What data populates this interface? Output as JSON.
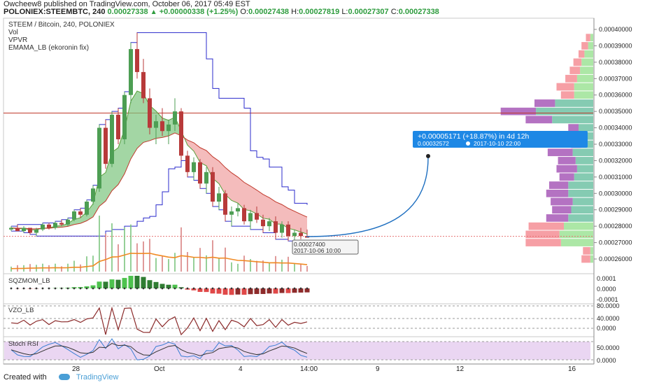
{
  "header": {
    "author": "Owcheew8",
    "published": "published on TradingView.com, October 06, 2017 05:49 EST",
    "symbol": "POLONIEX:STEEMBTC, 240",
    "last": "0.00027338",
    "change": "+0.00000338 (+1.25%)",
    "o_label": "O:",
    "o_value": "0.00027438",
    "h_label": "H:",
    "h_value": "0.00027819",
    "l_label": "L:",
    "l_value": "0.00027307",
    "c_label": "C:",
    "c_value": "0.00027338"
  },
  "main_legend": {
    "title": "STEEM / Bitcoin, 240, POLONIEX",
    "vol": "Vol",
    "vpvr": "VPVR",
    "emama": "EMAMA_LB (ekoronin fix)"
  },
  "price_axis": {
    "ticks": [
      "0.00040000",
      "0.00039000",
      "0.00038000",
      "0.00037000",
      "0.00036000",
      "0.00035000",
      "0.00034000",
      "0.00033000",
      "0.00032000",
      "0.00031000",
      "0.00030000",
      "0.00029000",
      "0.00028000",
      "0.00027000",
      "0.00026000"
    ]
  },
  "projection": {
    "change": "+0.00005171 (+18.87%) in 4d 12h",
    "target": "0.00032572",
    "date": "2017-10-10  22:00"
  },
  "cursor_label": {
    "price": "0.00027400",
    "date": "2017-10-06 10:00"
  },
  "sqz": {
    "title": "SQZMOM_LB",
    "ticks": [
      "0.0001",
      "0.0000",
      "-0.0001"
    ]
  },
  "vzo": {
    "title": "VZO_LB",
    "ticks": [
      "80.0000",
      "40.0000",
      "0.0000"
    ]
  },
  "stoch": {
    "title": "Stoch RSI",
    "ticks": [
      "50.0000",
      "0.0000"
    ]
  },
  "x_axis": {
    "ticks": [
      "28",
      "Oct",
      "4",
      "14:00",
      "9",
      "12",
      "16"
    ]
  },
  "footer": {
    "created": "Created with",
    "brand": "TradingView"
  },
  "colors": {
    "up": "#4d9e53",
    "down": "#b83a3a",
    "ribbon_up": "#7cc47e",
    "ribbon_down": "#f0a0a0",
    "blue_line": "#2b2bcc",
    "orange_line": "#f08a24",
    "vp_up": "#7ec8ae",
    "vp_down": "#b06abf",
    "projection_bg": "#1e88e5"
  },
  "chart_data": {
    "type": "candlestick",
    "symbol": "STEEM / Bitcoin, 240, POLONIEX",
    "ylim": [
      0.000255,
      0.000405
    ],
    "candles": [
      [
        0.000278,
        0.00028,
        0.000277,
        0.000279
      ],
      [
        0.000279,
        0.000281,
        0.000277,
        0.000277
      ],
      [
        0.000277,
        0.00028,
        0.000276,
        0.000279
      ],
      [
        0.000279,
        0.000279,
        0.000275,
        0.000276
      ],
      [
        0.000276,
        0.000279,
        0.000274,
        0.000278
      ],
      [
        0.000278,
        0.000282,
        0.000277,
        0.000281
      ],
      [
        0.000281,
        0.000282,
        0.000278,
        0.000279
      ],
      [
        0.000279,
        0.000283,
        0.000278,
        0.000282
      ],
      [
        0.000282,
        0.000284,
        0.00028,
        0.000281
      ],
      [
        0.000281,
        0.000285,
        0.00028,
        0.000284
      ],
      [
        0.000284,
        0.00029,
        0.000283,
        0.000289
      ],
      [
        0.000289,
        0.000291,
        0.000285,
        0.000287
      ],
      [
        0.000287,
        0.000296,
        0.000286,
        0.000295
      ],
      [
        0.000295,
        0.000305,
        0.000293,
        0.000303
      ],
      [
        0.000303,
        0.000342,
        0.000301,
        0.00034
      ],
      [
        0.00034,
        0.000345,
        0.000315,
        0.000318
      ],
      [
        0.000318,
        0.00035,
        0.000316,
        0.000348
      ],
      [
        0.000348,
        0.000352,
        0.00033,
        0.000333
      ],
      [
        0.000333,
        0.000362,
        0.00033,
        0.00036
      ],
      [
        0.00036,
        0.000392,
        0.000355,
        0.000388
      ],
      [
        0.000388,
        0.000398,
        0.00037,
        0.000374
      ],
      [
        0.000374,
        0.000382,
        0.000355,
        0.000358
      ],
      [
        0.000358,
        0.000364,
        0.000336,
        0.00034
      ],
      [
        0.00034,
        0.000348,
        0.00033,
        0.000344
      ],
      [
        0.000344,
        0.000352,
        0.000335,
        0.000338
      ],
      [
        0.000338,
        0.000345,
        0.00033,
        0.000342
      ],
      [
        0.000342,
        0.000358,
        0.000338,
        0.00035
      ],
      [
        0.00035,
        0.000352,
        0.00032,
        0.000323
      ],
      [
        0.000323,
        0.000326,
        0.00031,
        0.000313
      ],
      [
        0.000313,
        0.000322,
        0.000308,
        0.000319
      ],
      [
        0.000319,
        0.000321,
        0.000303,
        0.000306
      ],
      [
        0.000306,
        0.000316,
        0.0003,
        0.000313
      ],
      [
        0.000313,
        0.000316,
        0.000292,
        0.000295
      ],
      [
        0.000295,
        0.000304,
        0.00029,
        0.0003
      ],
      [
        0.0003,
        0.000302,
        0.000283,
        0.000287
      ],
      [
        0.000287,
        0.000292,
        0.00028,
        0.000289
      ],
      [
        0.000289,
        0.000294,
        0.000286,
        0.000291
      ],
      [
        0.000291,
        0.000293,
        0.000281,
        0.000283
      ],
      [
        0.000283,
        0.00029,
        0.000278,
        0.000288
      ],
      [
        0.000288,
        0.000292,
        0.000282,
        0.000284
      ],
      [
        0.000284,
        0.000287,
        0.000276,
        0.00028
      ],
      [
        0.00028,
        0.000285,
        0.000277,
        0.000283
      ],
      [
        0.000283,
        0.000286,
        0.000272,
        0.000276
      ],
      [
        0.000276,
        0.000283,
        0.000273,
        0.000281
      ],
      [
        0.000281,
        0.000283,
        0.000271,
        0.000274
      ],
      [
        0.000274,
        0.000278,
        0.000269,
        0.000276
      ],
      [
        0.000276,
        0.000279,
        0.000272,
        0.000274
      ],
      [
        0.000274,
        0.000278,
        0.000273,
        0.000273
      ]
    ],
    "volume_profile": [
      {
        "price": 0.000395,
        "up": 4,
        "down": 6,
        "va": false
      },
      {
        "price": 0.00039,
        "up": 7,
        "down": 9,
        "va": false
      },
      {
        "price": 0.000385,
        "up": 12,
        "down": 8,
        "va": false
      },
      {
        "price": 0.00038,
        "up": 16,
        "down": 11,
        "va": false
      },
      {
        "price": 0.000375,
        "up": 18,
        "down": 14,
        "va": false
      },
      {
        "price": 0.00037,
        "up": 22,
        "down": 16,
        "va": false
      },
      {
        "price": 0.000365,
        "up": 26,
        "down": 24,
        "va": false
      },
      {
        "price": 0.00036,
        "up": 26,
        "down": 18,
        "va": false
      },
      {
        "price": 0.000355,
        "up": 52,
        "down": 28,
        "va": true
      },
      {
        "price": 0.00035,
        "up": 78,
        "down": 48,
        "va": true
      },
      {
        "price": 0.000345,
        "up": 56,
        "down": 36,
        "va": true
      },
      {
        "price": 0.00034,
        "up": 20,
        "down": 14,
        "va": true
      },
      {
        "price": 0.000335,
        "up": 20,
        "down": 12,
        "va": true
      },
      {
        "price": 0.00033,
        "up": 16,
        "down": 14,
        "va": true
      },
      {
        "price": 0.000325,
        "up": 28,
        "down": 34,
        "va": true
      },
      {
        "price": 0.00032,
        "up": 24,
        "down": 24,
        "va": true
      },
      {
        "price": 0.000315,
        "up": 22,
        "down": 28,
        "va": true
      },
      {
        "price": 0.00031,
        "up": 26,
        "down": 20,
        "va": true
      },
      {
        "price": 0.000305,
        "up": 34,
        "down": 26,
        "va": true
      },
      {
        "price": 0.0003,
        "up": 34,
        "down": 30,
        "va": true
      },
      {
        "price": 0.000295,
        "up": 28,
        "down": 30,
        "va": true
      },
      {
        "price": 0.00029,
        "up": 30,
        "down": 26,
        "va": true
      },
      {
        "price": 0.000285,
        "up": 34,
        "down": 30,
        "va": true
      },
      {
        "price": 0.00028,
        "up": 40,
        "down": 48,
        "va": false
      },
      {
        "price": 0.000275,
        "up": 46,
        "down": 46,
        "va": false
      },
      {
        "price": 0.00027,
        "up": 44,
        "down": 48,
        "va": false
      },
      {
        "price": 0.000265,
        "up": 4,
        "down": 10,
        "va": false
      },
      {
        "price": 0.00026,
        "up": 4,
        "down": 12,
        "va": false
      }
    ],
    "horizontal_line": 0.000349
  }
}
